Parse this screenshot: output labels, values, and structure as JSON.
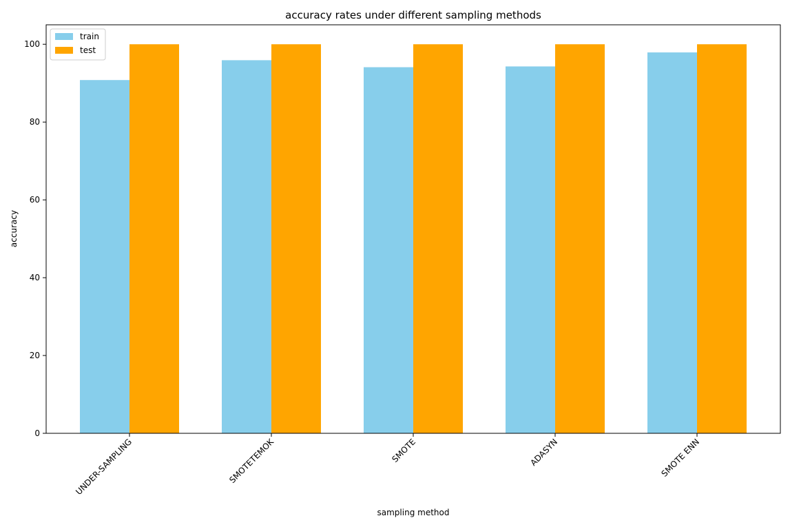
{
  "chart_data": {
    "type": "bar",
    "title": "accuracy rates under different sampling methods",
    "xlabel": "sampling method",
    "ylabel": "accuracy",
    "categories": [
      "UNDER-SAMPLING",
      "SMOTETEMOK",
      "SMOTE",
      "ADASYN",
      "SMOTE ENN"
    ],
    "series": [
      {
        "name": "train",
        "color": "#87ceeb",
        "values": [
          90.8,
          95.9,
          94.1,
          94.3,
          97.9
        ]
      },
      {
        "name": "test",
        "color": "#ffa500",
        "values": [
          100,
          100,
          100,
          100,
          100
        ]
      }
    ],
    "ylim": [
      0,
      105
    ],
    "yticks": [
      0,
      20,
      40,
      60,
      80,
      100
    ],
    "grid": false,
    "legend": "top-left",
    "tick_label_rotation": 45
  }
}
